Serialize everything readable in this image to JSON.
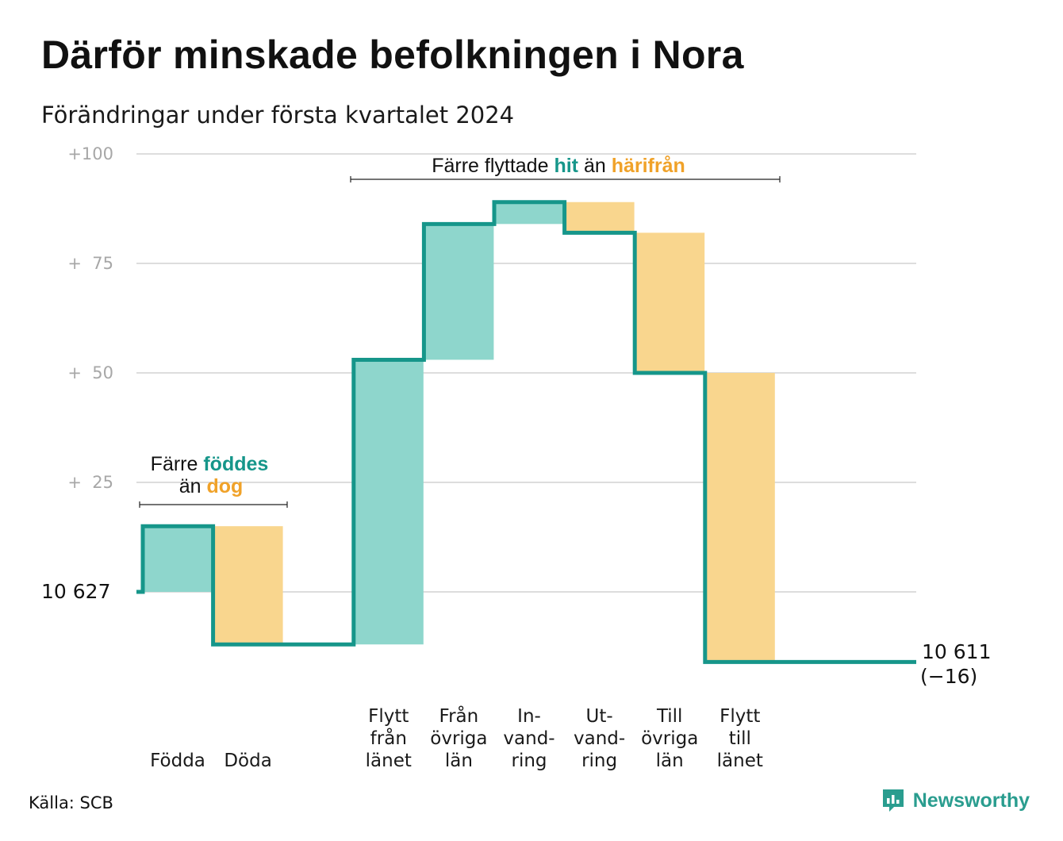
{
  "title": "Därför minskade befolkningen i Nora",
  "subtitle": "Förändringar under första kvartalet 2024",
  "source": "Källa: SCB",
  "brand": "Newsworthy",
  "colors": {
    "increase_fill": "#8ed6cc",
    "decrease_fill": "#f9d68e",
    "line": "#16968a",
    "accent_orange": "#f0a229",
    "grid": "#dddddd"
  },
  "annotations": {
    "births": {
      "pre": "Färre",
      "green": "föddes",
      "line2_pre": "än",
      "orange": "dog"
    },
    "moves": {
      "pre": "Färre flyttade",
      "green": "hit",
      "mid": "än",
      "orange": "härifrån"
    }
  },
  "start_label": "10 627",
  "end_label": {
    "value": "10 611",
    "change": "(−16)"
  },
  "chart_data": {
    "type": "waterfall",
    "title": "Därför minskade befolkningen i Nora",
    "subtitle": "Förändringar under första kvartalet 2024",
    "start_value": 10627,
    "end_value": 10611,
    "net_change": -16,
    "y_tick_labels": [
      "+100",
      "+  75",
      "+  50",
      "+  25"
    ],
    "y_ticks": [
      100,
      75,
      50,
      25
    ],
    "ylim": [
      -20,
      100
    ],
    "grid": true,
    "categories": [
      {
        "lines": [
          "Födda"
        ],
        "value": 15
      },
      {
        "lines": [
          "Döda"
        ],
        "value": -27
      },
      {
        "lines": [],
        "value": 0
      },
      {
        "lines": [
          "Flytt",
          "från",
          "länet"
        ],
        "value": 65
      },
      {
        "lines": [
          "Från",
          "övriga",
          "län"
        ],
        "value": 31
      },
      {
        "lines": [
          "In-",
          "vand-",
          "ring"
        ],
        "value": 5
      },
      {
        "lines": [
          "Ut-",
          "vand-",
          "ring"
        ],
        "value": -7
      },
      {
        "lines": [
          "Till",
          "övriga",
          "län"
        ],
        "value": -32
      },
      {
        "lines": [
          "Flytt",
          "till",
          "länet"
        ],
        "value": -66
      },
      {
        "lines": [],
        "value": 0
      },
      {
        "lines": [],
        "value": 0
      }
    ]
  }
}
